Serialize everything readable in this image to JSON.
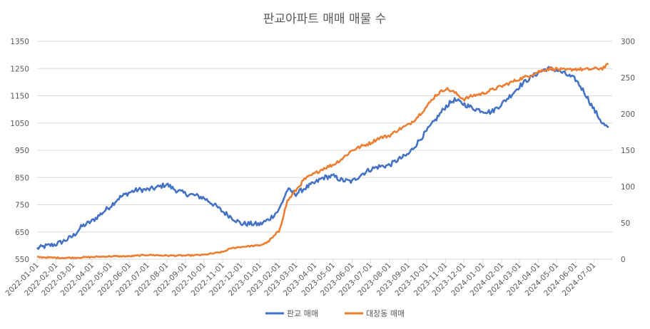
{
  "chart_data": {
    "type": "line",
    "title": "판교아파트 매매 매물 수",
    "xlabel": "",
    "ylabel": "",
    "y_left": {
      "min": 550,
      "max": 1350,
      "ticks": [
        550,
        650,
        750,
        850,
        950,
        1050,
        1150,
        1250,
        1350
      ]
    },
    "y_right": {
      "min": 0,
      "max": 300,
      "ticks": [
        0,
        50,
        100,
        150,
        200,
        250,
        300
      ]
    },
    "x_tick_labels": [
      "2022-01-01",
      "2022-02-01",
      "2022-03-01",
      "2022-04-01",
      "2022-05-01",
      "2022-06-01",
      "2022-07-01",
      "2022-08-01",
      "2022-09-01",
      "2022-10-01",
      "2022-11-01",
      "2022-12-01",
      "2023-01-01",
      "2023-02-01",
      "2023-03-01",
      "2023-04-01",
      "2023-05-01",
      "2023-06-01",
      "2023-07-01",
      "2023-08-01",
      "2023-09-01",
      "2023-10-01",
      "2023-11-01",
      "2023-12-01",
      "2024-01-01",
      "2024-02-01",
      "2024-03-01",
      "2024-04-01",
      "2024-05-01",
      "2024-06-01",
      "2024-07-01"
    ],
    "legend_position": "bottom",
    "grid": true,
    "series": [
      {
        "name": "판교 매매",
        "axis": "left",
        "color": "#4472C4",
        "points": [
          [
            "2022-01-01",
            590
          ],
          [
            "2022-01-15",
            598
          ],
          [
            "2022-02-01",
            605
          ],
          [
            "2022-02-15",
            618
          ],
          [
            "2022-03-01",
            635
          ],
          [
            "2022-03-15",
            670
          ],
          [
            "2022-04-01",
            690
          ],
          [
            "2022-04-15",
            715
          ],
          [
            "2022-05-01",
            745
          ],
          [
            "2022-05-15",
            775
          ],
          [
            "2022-06-01",
            795
          ],
          [
            "2022-06-15",
            805
          ],
          [
            "2022-07-01",
            805
          ],
          [
            "2022-07-15",
            812
          ],
          [
            "2022-08-01",
            825
          ],
          [
            "2022-08-15",
            805
          ],
          [
            "2022-09-01",
            790
          ],
          [
            "2022-09-15",
            785
          ],
          [
            "2022-10-01",
            775
          ],
          [
            "2022-10-15",
            755
          ],
          [
            "2022-11-01",
            725
          ],
          [
            "2022-11-15",
            705
          ],
          [
            "2022-12-01",
            680
          ],
          [
            "2022-12-15",
            680
          ],
          [
            "2023-01-01",
            678
          ],
          [
            "2023-01-15",
            695
          ],
          [
            "2023-02-01",
            730
          ],
          [
            "2023-02-15",
            805
          ],
          [
            "2023-03-01",
            790
          ],
          [
            "2023-03-15",
            810
          ],
          [
            "2023-04-01",
            830
          ],
          [
            "2023-04-15",
            850
          ],
          [
            "2023-05-01",
            855
          ],
          [
            "2023-05-15",
            840
          ],
          [
            "2023-06-01",
            835
          ],
          [
            "2023-06-15",
            860
          ],
          [
            "2023-07-01",
            880
          ],
          [
            "2023-07-15",
            890
          ],
          [
            "2023-08-01",
            895
          ],
          [
            "2023-08-15",
            915
          ],
          [
            "2023-09-01",
            935
          ],
          [
            "2023-09-15",
            975
          ],
          [
            "2023-10-01",
            1020
          ],
          [
            "2023-10-15",
            1060
          ],
          [
            "2023-11-01",
            1110
          ],
          [
            "2023-11-15",
            1135
          ],
          [
            "2023-12-01",
            1120
          ],
          [
            "2023-12-15",
            1105
          ],
          [
            "2024-01-01",
            1095
          ],
          [
            "2024-01-15",
            1090
          ],
          [
            "2024-02-01",
            1120
          ],
          [
            "2024-02-15",
            1150
          ],
          [
            "2024-03-01",
            1185
          ],
          [
            "2024-03-15",
            1210
          ],
          [
            "2024-04-01",
            1235
          ],
          [
            "2024-04-15",
            1250
          ],
          [
            "2024-05-01",
            1245
          ],
          [
            "2024-05-15",
            1230
          ],
          [
            "2024-06-01",
            1210
          ],
          [
            "2024-06-15",
            1165
          ],
          [
            "2024-07-01",
            1100
          ],
          [
            "2024-07-15",
            1050
          ],
          [
            "2024-07-25",
            1030
          ]
        ]
      },
      {
        "name": "대장동 매매",
        "axis": "right",
        "color": "#ED7D31",
        "points": [
          [
            "2022-01-01",
            3
          ],
          [
            "2022-02-01",
            2
          ],
          [
            "2022-03-01",
            2
          ],
          [
            "2022-04-01",
            3
          ],
          [
            "2022-05-01",
            4
          ],
          [
            "2022-06-01",
            4
          ],
          [
            "2022-07-01",
            6
          ],
          [
            "2022-08-01",
            5
          ],
          [
            "2022-09-01",
            5
          ],
          [
            "2022-10-01",
            6
          ],
          [
            "2022-11-01",
            10
          ],
          [
            "2022-11-15",
            15
          ],
          [
            "2022-12-01",
            17
          ],
          [
            "2022-12-15",
            18
          ],
          [
            "2023-01-01",
            19
          ],
          [
            "2023-01-15",
            24
          ],
          [
            "2023-02-01",
            38
          ],
          [
            "2023-02-15",
            80
          ],
          [
            "2023-03-01",
            95
          ],
          [
            "2023-03-15",
            110
          ],
          [
            "2023-04-01",
            118
          ],
          [
            "2023-04-15",
            125
          ],
          [
            "2023-05-01",
            130
          ],
          [
            "2023-05-15",
            138
          ],
          [
            "2023-06-01",
            150
          ],
          [
            "2023-06-15",
            155
          ],
          [
            "2023-07-01",
            160
          ],
          [
            "2023-07-15",
            167
          ],
          [
            "2023-08-01",
            170
          ],
          [
            "2023-08-15",
            178
          ],
          [
            "2023-09-01",
            185
          ],
          [
            "2023-09-15",
            195
          ],
          [
            "2023-10-01",
            210
          ],
          [
            "2023-10-15",
            225
          ],
          [
            "2023-11-01",
            235
          ],
          [
            "2023-11-15",
            230
          ],
          [
            "2023-12-01",
            220
          ],
          [
            "2023-12-15",
            225
          ],
          [
            "2024-01-01",
            228
          ],
          [
            "2024-01-15",
            233
          ],
          [
            "2024-02-01",
            238
          ],
          [
            "2024-02-15",
            243
          ],
          [
            "2024-03-01",
            248
          ],
          [
            "2024-03-15",
            252
          ],
          [
            "2024-04-01",
            258
          ],
          [
            "2024-04-15",
            262
          ],
          [
            "2024-05-01",
            262
          ],
          [
            "2024-05-15",
            260
          ],
          [
            "2024-06-01",
            262
          ],
          [
            "2024-06-15",
            261
          ],
          [
            "2024-07-01",
            262
          ],
          [
            "2024-07-15",
            263
          ],
          [
            "2024-07-25",
            268
          ]
        ]
      }
    ]
  }
}
